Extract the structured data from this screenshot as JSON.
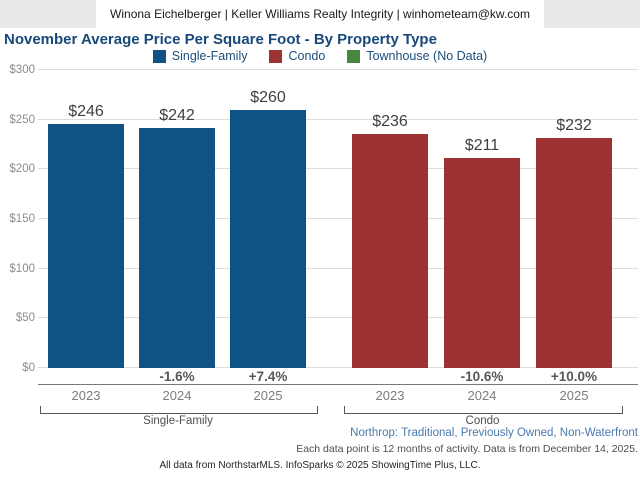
{
  "header": {
    "text": "Winona Eichelberger | Keller Williams Realty Integrity | winhometeam@kw.com"
  },
  "title": "November Average Price Per Square Foot - By Property Type",
  "legend": [
    {
      "label": "Single-Family",
      "color": "#0f5286"
    },
    {
      "label": "Condo",
      "color": "#9e3132"
    },
    {
      "label": "Townhouse (No Data)",
      "color": "#47873f"
    }
  ],
  "chart_data": {
    "type": "bar",
    "title": "November Average Price Per Square Foot - By Property Type",
    "xlabel": "",
    "ylabel": "",
    "ylim": [
      0,
      300
    ],
    "yticks": [
      0,
      50,
      100,
      150,
      200,
      250,
      300
    ],
    "ytick_prefix": "$",
    "grid": true,
    "legend_position": "top",
    "groups": [
      {
        "name": "Single-Family",
        "color": "#0f5286",
        "categories": [
          "2023",
          "2024",
          "2025"
        ],
        "values": [
          246,
          242,
          260
        ],
        "value_labels": [
          "$246",
          "$242",
          "$260"
        ],
        "pct_change": [
          null,
          "-1.6%",
          "+7.4%"
        ]
      },
      {
        "name": "Condo",
        "color": "#9e3132",
        "categories": [
          "2023",
          "2024",
          "2025"
        ],
        "values": [
          236,
          211,
          232
        ],
        "value_labels": [
          "$236",
          "$211",
          "$232"
        ],
        "pct_change": [
          null,
          "-10.6%",
          "+10.0%"
        ]
      },
      {
        "name": "Townhouse",
        "color": "#47873f",
        "categories": [],
        "values": [],
        "note": "No Data"
      }
    ]
  },
  "footnotes": {
    "filter": "Northrop: Traditional, Previously Owned, Non-Waterfront",
    "data_note": "Each data point is 12 months of activity. Data is from December 14, 2025.",
    "attribution": "All data from NorthstarMLS. InfoSparks © 2025 ShowingTime Plus, LLC."
  }
}
